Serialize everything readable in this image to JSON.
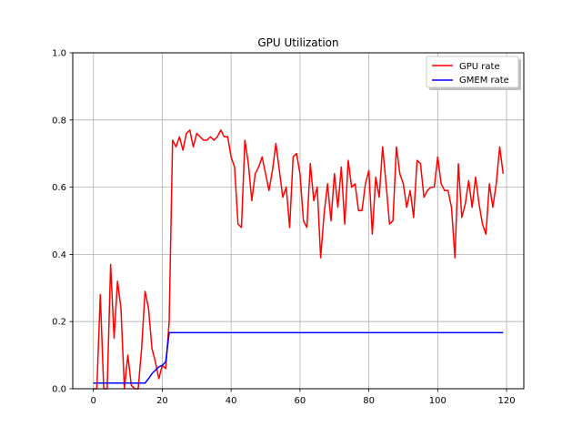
{
  "chart_data": {
    "type": "line",
    "title": "GPU Utilization",
    "xlabel": "",
    "ylabel": "",
    "xlim": [
      -6,
      125
    ],
    "ylim": [
      0,
      1.0
    ],
    "xticks": [
      0,
      20,
      40,
      60,
      80,
      100,
      120
    ],
    "yticks": [
      0.0,
      0.2,
      0.4,
      0.6,
      0.8,
      1.0
    ],
    "xtick_labels": [
      "0",
      "20",
      "40",
      "60",
      "80",
      "100",
      "120"
    ],
    "ytick_labels": [
      "0.0",
      "0.2",
      "0.4",
      "0.6",
      "0.8",
      "1.0"
    ],
    "grid": true,
    "legend_position": "top-right",
    "series": [
      {
        "name": "GPU rate",
        "color": "#ff0000",
        "x": [
          0,
          1,
          2,
          3,
          4,
          5,
          6,
          7,
          8,
          9,
          10,
          11,
          12,
          13,
          14,
          15,
          16,
          17,
          18,
          19,
          20,
          21,
          22,
          23,
          24,
          25,
          26,
          27,
          28,
          29,
          30,
          31,
          32,
          33,
          34,
          35,
          36,
          37,
          38,
          39,
          40,
          41,
          42,
          43,
          44,
          45,
          46,
          47,
          48,
          49,
          50,
          51,
          52,
          53,
          54,
          55,
          56,
          57,
          58,
          59,
          60,
          61,
          62,
          63,
          64,
          65,
          66,
          67,
          68,
          69,
          70,
          71,
          72,
          73,
          74,
          75,
          76,
          77,
          78,
          79,
          80,
          81,
          82,
          83,
          84,
          85,
          86,
          87,
          88,
          89,
          90,
          91,
          92,
          93,
          94,
          95,
          96,
          97,
          98,
          99,
          100,
          101,
          102,
          103,
          104,
          105,
          106,
          107,
          108,
          109,
          110,
          111,
          112,
          113,
          114,
          115,
          116,
          117,
          118,
          119
        ],
        "values": [
          0.0,
          0.0,
          0.28,
          0.0,
          0.0,
          0.37,
          0.15,
          0.32,
          0.24,
          0.0,
          0.1,
          0.01,
          0.0,
          0.0,
          0.12,
          0.29,
          0.24,
          0.12,
          0.08,
          0.03,
          0.07,
          0.06,
          0.2,
          0.74,
          0.72,
          0.75,
          0.71,
          0.76,
          0.77,
          0.72,
          0.76,
          0.75,
          0.74,
          0.74,
          0.75,
          0.74,
          0.75,
          0.77,
          0.75,
          0.75,
          0.69,
          0.66,
          0.49,
          0.48,
          0.74,
          0.67,
          0.56,
          0.64,
          0.66,
          0.69,
          0.64,
          0.59,
          0.65,
          0.73,
          0.65,
          0.57,
          0.6,
          0.48,
          0.69,
          0.7,
          0.64,
          0.5,
          0.48,
          0.67,
          0.56,
          0.6,
          0.39,
          0.52,
          0.61,
          0.5,
          0.64,
          0.54,
          0.66,
          0.49,
          0.68,
          0.6,
          0.61,
          0.53,
          0.53,
          0.61,
          0.65,
          0.46,
          0.63,
          0.57,
          0.72,
          0.61,
          0.49,
          0.5,
          0.72,
          0.64,
          0.61,
          0.54,
          0.59,
          0.51,
          0.68,
          0.67,
          0.57,
          0.59,
          0.6,
          0.6,
          0.69,
          0.61,
          0.59,
          0.59,
          0.54,
          0.39,
          0.67,
          0.51,
          0.55,
          0.62,
          0.54,
          0.63,
          0.55,
          0.49,
          0.46,
          0.61,
          0.54,
          0.61,
          0.72,
          0.64
        ]
      },
      {
        "name": "GMEM rate",
        "color": "#0000ff",
        "x": [
          0,
          15,
          16,
          17,
          18,
          19,
          20,
          21,
          22,
          30,
          40,
          50,
          60,
          70,
          80,
          90,
          100,
          110,
          119
        ],
        "values": [
          0.017,
          0.017,
          0.03,
          0.045,
          0.055,
          0.065,
          0.07,
          0.08,
          0.167,
          0.167,
          0.167,
          0.167,
          0.167,
          0.167,
          0.167,
          0.167,
          0.167,
          0.167,
          0.167
        ]
      }
    ]
  }
}
